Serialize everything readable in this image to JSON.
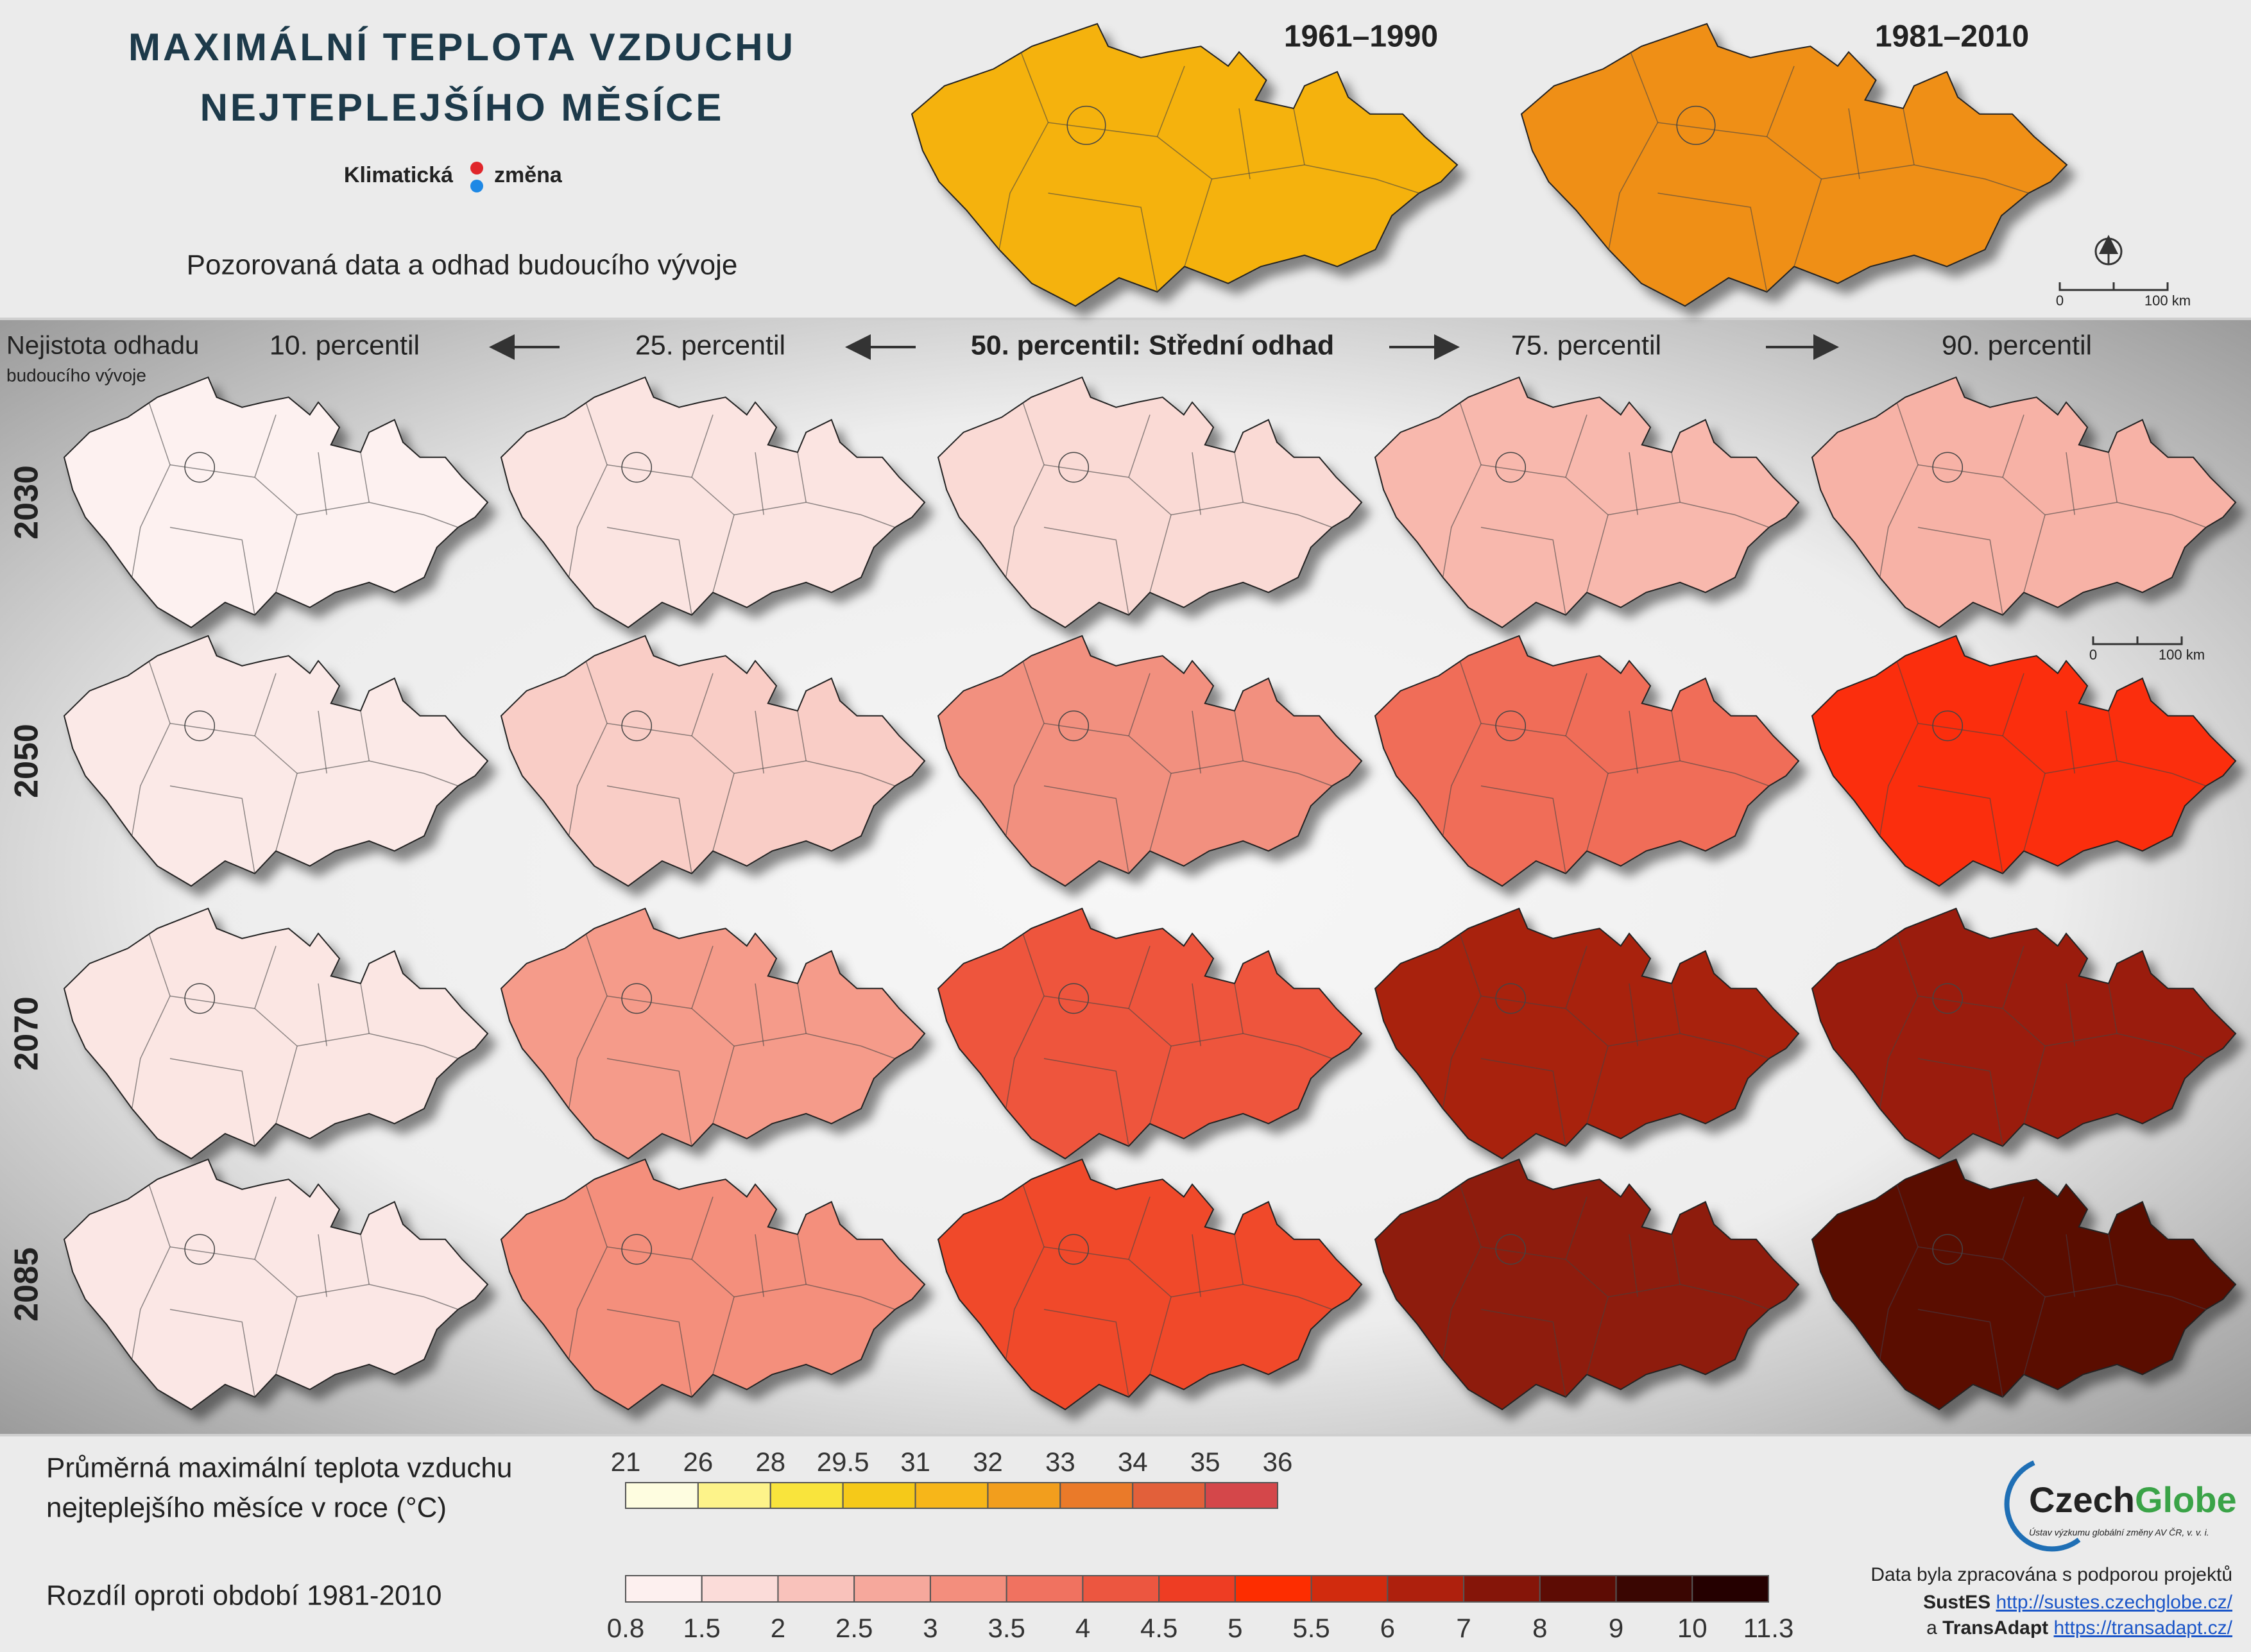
{
  "header": {
    "title": [
      "MAXIMÁLNÍ TEPLOTA VZDUCHU",
      "NEJTEPLEJŠÍHO MĚSÍCE"
    ],
    "brand": [
      "Klimatická",
      "změna"
    ],
    "subtitle": "Pozorovaná data a odhad budoucího vývoje"
  },
  "observed": [
    {
      "period": "1961–1990",
      "color": "#f5b20a"
    },
    {
      "period": "1981–2010",
      "color": "#ef8f17"
    }
  ],
  "scale_bar": {
    "start": "0",
    "end": "100 km"
  },
  "uncertainty": {
    "label": [
      "Nejistota odhadu",
      "budoucího vývoje"
    ],
    "percentiles": [
      "10. percentil",
      "25. percentil",
      "50. percentil: Střední odhad",
      "75. percentil",
      "90. percentil"
    ]
  },
  "projections": [
    {
      "year": "2030",
      "fills": [
        "#fdf1f0",
        "#fbe4e1",
        "#fadad5",
        "#f8b8ad",
        "#f7b2a6"
      ]
    },
    {
      "year": "2050",
      "fills": [
        "#fbe9e7",
        "#f9cdc6",
        "#f2907f",
        "#f06d58",
        "#fb2f0b"
      ]
    },
    {
      "year": "2070",
      "fills": [
        "#fbe6e3",
        "#f59b8a",
        "#ee553c",
        "#a8220e",
        "#9a1d0b"
      ]
    },
    {
      "year": "2085",
      "fills": [
        "#fbe7e5",
        "#f48f7c",
        "#f04a2b",
        "#8e1a09",
        "#5a0804"
      ]
    }
  ],
  "legend_absolute": {
    "title": [
      "Průměrná maximální teplota vzduchu",
      "nejteplejšího měsíce v roce (°C)"
    ],
    "ticks": [
      21,
      26,
      28,
      29.5,
      31,
      32,
      33,
      34,
      35,
      36
    ],
    "colors": [
      "#fefde0",
      "#fdf38a",
      "#f9e43c",
      "#f5c919",
      "#f7b619",
      "#f29e1d",
      "#ea7a29",
      "#e2603a",
      "#d4474a"
    ]
  },
  "legend_difference": {
    "title": "Rozdíl oproti období 1981-2010",
    "ticks": [
      0.8,
      1.5,
      2,
      2.5,
      3,
      3.5,
      4,
      4.5,
      5,
      5.5,
      6,
      7,
      8,
      9,
      10,
      11.3
    ],
    "colors": [
      "#fdf0ef",
      "#fbdcd9",
      "#f9c2bb",
      "#f6a89c",
      "#f38e7d",
      "#f07260",
      "#ec5640",
      "#ee3d23",
      "#fd2d00",
      "#d12b0e",
      "#ae200d",
      "#851509",
      "#5d0c04",
      "#3a0602",
      "#250000"
    ]
  },
  "logo": {
    "name": [
      "Czech",
      "Globe"
    ],
    "subtitle": "Ústav výzkumu globální změny AV ČR, v. v. i."
  },
  "footer": {
    "note": "Data byla zpracována s podporou projektů",
    "projects": [
      {
        "name": "SustES",
        "url": "http://sustes.czechglobe.cz/"
      },
      {
        "prefix": "a",
        "name": "TransAdapt",
        "url": "https://transadapt.cz/"
      }
    ]
  }
}
